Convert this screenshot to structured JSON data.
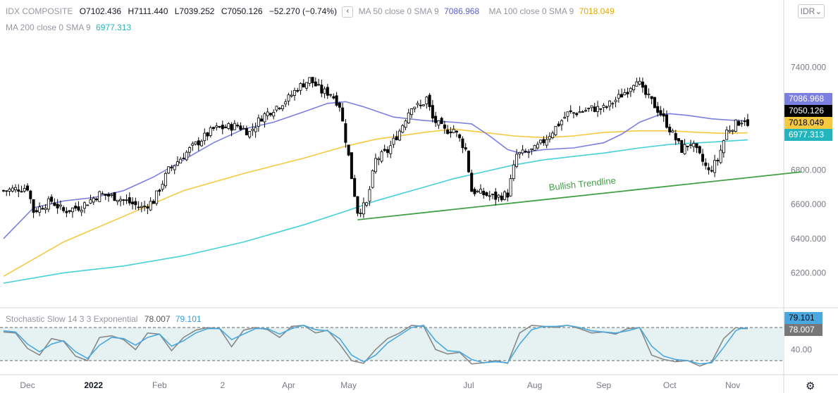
{
  "header": {
    "symbol": "IDX COMPOSITE",
    "o_key": "O",
    "o_val": "7102.436",
    "h_key": "H",
    "h_val": "7111.440",
    "l_key": "L",
    "l_val": "7039.252",
    "c_key": "C",
    "c_val": "7050.126",
    "change": "−52.270 (−0.74%)",
    "collapse": "‹",
    "ma50_label": "MA 50 close 0 SMA 9",
    "ma50_val": "7086.968",
    "ma100_label": "MA 100 close 0 SMA 9",
    "ma100_val": "7018.049",
    "ma200_label": "MA 200 close 0 SMA 9",
    "ma200_val": "6977.313",
    "currency": "IDR⌄"
  },
  "stoch_header": {
    "label": "Stochastic Slow 14 3 3 Exponential",
    "k_val": "78.007",
    "d_val": "79.101"
  },
  "price_tags": {
    "ma50": "7086.968",
    "close": "7050.126",
    "ma100": "7018.049",
    "ma200": "6977.313",
    "stoch_d": "79.101",
    "stoch_k": "78.007"
  },
  "colors": {
    "ma50": "#7b7fe0",
    "ma100": "#f5c940",
    "ma200": "#46d0d8",
    "trendline": "#43a047",
    "candle": "#000000",
    "stoch_k": "#888888",
    "stoch_d": "#4aa8e0",
    "stoch_band": "#e6f2f2"
  },
  "chart_data": {
    "type": "candlestick",
    "y_axis_ticks": [
      6200,
      6400,
      6600,
      6800,
      7000,
      7200,
      7400
    ],
    "y_axis_labels": [
      "6200.000",
      "6400.000",
      "6600.000",
      "6800.000",
      "7000.000",
      "7200.000",
      "7400.000"
    ],
    "ylim": [
      6000,
      7580
    ],
    "x_axis_labels": [
      "Dec",
      "2022",
      "Feb",
      "2",
      "Apr",
      "May",
      "Jul",
      "Aug",
      "Sep",
      "Oct",
      "Nov"
    ],
    "x_axis_day_index": [
      8,
      30,
      52,
      73,
      95,
      115,
      155,
      177,
      200,
      222,
      243
    ],
    "total_days": 260,
    "last_day_index": 248,
    "price_path": [
      [
        0,
        6680
      ],
      [
        8,
        6700
      ],
      [
        10,
        6560
      ],
      [
        16,
        6620
      ],
      [
        20,
        6560
      ],
      [
        26,
        6590
      ],
      [
        32,
        6660
      ],
      [
        38,
        6640
      ],
      [
        42,
        6610
      ],
      [
        46,
        6580
      ],
      [
        50,
        6620
      ],
      [
        55,
        6800
      ],
      [
        62,
        6920
      ],
      [
        70,
        7040
      ],
      [
        78,
        7060
      ],
      [
        82,
        7020
      ],
      [
        86,
        7110
      ],
      [
        90,
        7160
      ],
      [
        95,
        7220
      ],
      [
        98,
        7280
      ],
      [
        102,
        7330
      ],
      [
        106,
        7260
      ],
      [
        109,
        7250
      ],
      [
        112,
        7180
      ],
      [
        115,
        6880
      ],
      [
        116,
        6760
      ],
      [
        118,
        6560
      ],
      [
        121,
        6600
      ],
      [
        124,
        6860
      ],
      [
        128,
        6910
      ],
      [
        132,
        7030
      ],
      [
        136,
        7180
      ],
      [
        139,
        7170
      ],
      [
        141,
        7220
      ],
      [
        143,
        7100
      ],
      [
        147,
        7030
      ],
      [
        150,
        7040
      ],
      [
        154,
        6920
      ],
      [
        156,
        6680
      ],
      [
        160,
        6660
      ],
      [
        164,
        6640
      ],
      [
        168,
        6660
      ],
      [
        171,
        6890
      ],
      [
        174,
        6900
      ],
      [
        177,
        6920
      ],
      [
        180,
        6970
      ],
      [
        184,
        7050
      ],
      [
        188,
        7130
      ],
      [
        192,
        7140
      ],
      [
        196,
        7160
      ],
      [
        200,
        7160
      ],
      [
        204,
        7210
      ],
      [
        208,
        7270
      ],
      [
        211,
        7340
      ],
      [
        213,
        7260
      ],
      [
        216,
        7200
      ],
      [
        219,
        7130
      ],
      [
        221,
        7070
      ],
      [
        223,
        7010
      ],
      [
        226,
        6920
      ],
      [
        229,
        6960
      ],
      [
        232,
        6880
      ],
      [
        235,
        6790
      ],
      [
        238,
        6860
      ],
      [
        241,
        7030
      ],
      [
        244,
        7070
      ],
      [
        247,
        7100
      ],
      [
        248,
        7050
      ]
    ],
    "ma50": [
      [
        0,
        6400
      ],
      [
        10,
        6580
      ],
      [
        20,
        6620
      ],
      [
        30,
        6640
      ],
      [
        40,
        6680
      ],
      [
        50,
        6760
      ],
      [
        60,
        6860
      ],
      [
        70,
        6960
      ],
      [
        80,
        7040
      ],
      [
        90,
        7080
      ],
      [
        100,
        7140
      ],
      [
        108,
        7190
      ],
      [
        114,
        7200
      ],
      [
        120,
        7170
      ],
      [
        130,
        7110
      ],
      [
        140,
        7090
      ],
      [
        150,
        7080
      ],
      [
        156,
        7070
      ],
      [
        162,
        7000
      ],
      [
        168,
        6920
      ],
      [
        172,
        6900
      ],
      [
        180,
        6920
      ],
      [
        190,
        6930
      ],
      [
        200,
        6960
      ],
      [
        206,
        7010
      ],
      [
        212,
        7080
      ],
      [
        218,
        7120
      ],
      [
        222,
        7130
      ],
      [
        228,
        7120
      ],
      [
        236,
        7100
      ],
      [
        244,
        7090
      ],
      [
        248,
        7087
      ]
    ],
    "ma100": [
      [
        0,
        6180
      ],
      [
        20,
        6380
      ],
      [
        40,
        6530
      ],
      [
        60,
        6680
      ],
      [
        80,
        6780
      ],
      [
        100,
        6870
      ],
      [
        114,
        6940
      ],
      [
        124,
        6980
      ],
      [
        140,
        7020
      ],
      [
        150,
        7040
      ],
      [
        160,
        7020
      ],
      [
        170,
        7000
      ],
      [
        180,
        6990
      ],
      [
        190,
        7000
      ],
      [
        200,
        7020
      ],
      [
        212,
        7030
      ],
      [
        222,
        7030
      ],
      [
        232,
        7020
      ],
      [
        240,
        7015
      ],
      [
        248,
        7018
      ]
    ],
    "ma200": [
      [
        0,
        6140
      ],
      [
        20,
        6200
      ],
      [
        40,
        6240
      ],
      [
        60,
        6300
      ],
      [
        80,
        6380
      ],
      [
        100,
        6480
      ],
      [
        114,
        6560
      ],
      [
        124,
        6620
      ],
      [
        140,
        6700
      ],
      [
        150,
        6750
      ],
      [
        160,
        6790
      ],
      [
        170,
        6830
      ],
      [
        180,
        6860
      ],
      [
        190,
        6880
      ],
      [
        200,
        6900
      ],
      [
        212,
        6930
      ],
      [
        222,
        6950
      ],
      [
        232,
        6960
      ],
      [
        240,
        6968
      ],
      [
        248,
        6977
      ]
    ],
    "trendline": {
      "start": [
        118,
        6510
      ],
      "end": [
        266,
        6790
      ],
      "label": "Bullish Trendline"
    },
    "stochastic": {
      "upper_band": 80,
      "lower_band": 20,
      "label_ticks": [
        40
      ],
      "k": [
        [
          0,
          72
        ],
        [
          4,
          70
        ],
        [
          8,
          42
        ],
        [
          12,
          30
        ],
        [
          16,
          60
        ],
        [
          20,
          55
        ],
        [
          24,
          28
        ],
        [
          28,
          20
        ],
        [
          32,
          62
        ],
        [
          36,
          65
        ],
        [
          40,
          58
        ],
        [
          44,
          40
        ],
        [
          48,
          70
        ],
        [
          52,
          68
        ],
        [
          56,
          38
        ],
        [
          60,
          62
        ],
        [
          64,
          75
        ],
        [
          68,
          80
        ],
        [
          72,
          78
        ],
        [
          76,
          45
        ],
        [
          80,
          75
        ],
        [
          84,
          80
        ],
        [
          88,
          76
        ],
        [
          92,
          62
        ],
        [
          96,
          82
        ],
        [
          100,
          84
        ],
        [
          104,
          70
        ],
        [
          108,
          75
        ],
        [
          112,
          50
        ],
        [
          116,
          20
        ],
        [
          120,
          15
        ],
        [
          124,
          40
        ],
        [
          128,
          60
        ],
        [
          132,
          70
        ],
        [
          136,
          84
        ],
        [
          140,
          82
        ],
        [
          144,
          40
        ],
        [
          148,
          32
        ],
        [
          152,
          35
        ],
        [
          156,
          14
        ],
        [
          160,
          16
        ],
        [
          164,
          20
        ],
        [
          168,
          15
        ],
        [
          172,
          70
        ],
        [
          176,
          84
        ],
        [
          180,
          82
        ],
        [
          184,
          80
        ],
        [
          188,
          84
        ],
        [
          192,
          78
        ],
        [
          196,
          70
        ],
        [
          200,
          72
        ],
        [
          204,
          68
        ],
        [
          208,
          78
        ],
        [
          212,
          80
        ],
        [
          216,
          30
        ],
        [
          220,
          22
        ],
        [
          224,
          18
        ],
        [
          228,
          20
        ],
        [
          232,
          10
        ],
        [
          236,
          18
        ],
        [
          240,
          60
        ],
        [
          244,
          80
        ],
        [
          246,
          78
        ],
        [
          248,
          78
        ]
      ],
      "d": [
        [
          0,
          74
        ],
        [
          4,
          72
        ],
        [
          8,
          50
        ],
        [
          12,
          36
        ],
        [
          16,
          50
        ],
        [
          20,
          56
        ],
        [
          24,
          36
        ],
        [
          28,
          24
        ],
        [
          32,
          48
        ],
        [
          36,
          62
        ],
        [
          40,
          60
        ],
        [
          44,
          48
        ],
        [
          48,
          62
        ],
        [
          52,
          68
        ],
        [
          56,
          46
        ],
        [
          60,
          56
        ],
        [
          64,
          70
        ],
        [
          68,
          78
        ],
        [
          72,
          78
        ],
        [
          76,
          58
        ],
        [
          80,
          68
        ],
        [
          84,
          78
        ],
        [
          88,
          78
        ],
        [
          92,
          68
        ],
        [
          96,
          78
        ],
        [
          100,
          84
        ],
        [
          104,
          76
        ],
        [
          108,
          74
        ],
        [
          112,
          60
        ],
        [
          116,
          30
        ],
        [
          120,
          18
        ],
        [
          124,
          30
        ],
        [
          128,
          52
        ],
        [
          132,
          66
        ],
        [
          136,
          80
        ],
        [
          140,
          84
        ],
        [
          144,
          56
        ],
        [
          148,
          38
        ],
        [
          152,
          36
        ],
        [
          156,
          22
        ],
        [
          160,
          16
        ],
        [
          164,
          18
        ],
        [
          168,
          16
        ],
        [
          172,
          50
        ],
        [
          176,
          76
        ],
        [
          180,
          82
        ],
        [
          184,
          82
        ],
        [
          188,
          84
        ],
        [
          192,
          80
        ],
        [
          196,
          74
        ],
        [
          200,
          72
        ],
        [
          204,
          70
        ],
        [
          208,
          74
        ],
        [
          212,
          80
        ],
        [
          216,
          46
        ],
        [
          220,
          28
        ],
        [
          224,
          22
        ],
        [
          228,
          20
        ],
        [
          232,
          14
        ],
        [
          236,
          16
        ],
        [
          240,
          44
        ],
        [
          244,
          74
        ],
        [
          246,
          79
        ],
        [
          248,
          79
        ]
      ]
    }
  }
}
